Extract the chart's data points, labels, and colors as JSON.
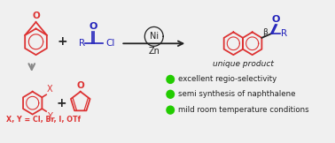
{
  "bg_color": "#f0f0f0",
  "red_color": "#dd3333",
  "blue_color": "#2222bb",
  "black_color": "#222222",
  "green_color": "#22cc00",
  "gray_color": "#888888",
  "bullet_texts": [
    "excellent regio-selectivity",
    "semi synthesis of naphthalene",
    "mild room temperature conditions"
  ],
  "unique_product_text": "unique product",
  "ni_label": "Ni",
  "zn_label": "Zn",
  "xy_label": "X, Y = Cl, Br, I, OTf",
  "r_label": "R",
  "cl_label": "Cl",
  "o_label": "O",
  "beta_label": "β",
  "figsize": [
    3.78,
    1.62
  ],
  "dpi": 100
}
